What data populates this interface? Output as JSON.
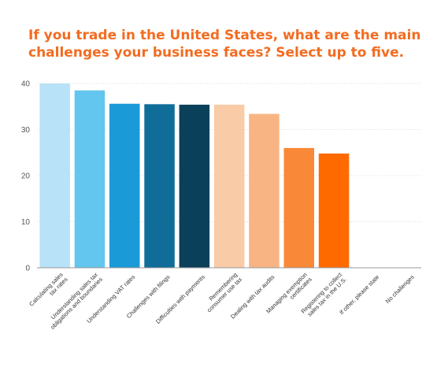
{
  "title_lines": [
    "If you trade in the United States, what are the main",
    "challenges your business faces? Select up to five."
  ],
  "chart_data": {
    "type": "bar",
    "title": "If you trade in the United States, what are the main challenges your business faces? Select up to five.",
    "xlabel": "",
    "ylabel": "",
    "ylim": [
      0,
      40
    ],
    "yticks": [
      0,
      10,
      20,
      30,
      40
    ],
    "grid": true,
    "legend": "none",
    "categories": [
      [
        "Calculating sales",
        "tax rates"
      ],
      [
        "Understanding sales tax",
        "obligations and boundaries"
      ],
      [
        "Understanding VAT rates"
      ],
      [
        "Challenges with filings"
      ],
      [
        "Difficulties with payments"
      ],
      [
        "Remembering",
        "consumer use tax"
      ],
      [
        "Dealing with tax audits"
      ],
      [
        "Managing exemption",
        "certificates"
      ],
      [
        "Registering to collect",
        "sales tax in the U.S."
      ],
      [
        "If other, please state"
      ],
      [
        "No challenges"
      ]
    ],
    "values": [
      40,
      38.5,
      35.6,
      35.5,
      35.4,
      35.4,
      33.4,
      26,
      24.8,
      0,
      0
    ],
    "colors": [
      "#b8e2f7",
      "#62c6ee",
      "#1a9ad6",
      "#0f6d98",
      "#0b405a",
      "#f9cba6",
      "#f8b583",
      "#f98838",
      "#ff6a00",
      "#cccccc",
      "#cccccc"
    ]
  }
}
